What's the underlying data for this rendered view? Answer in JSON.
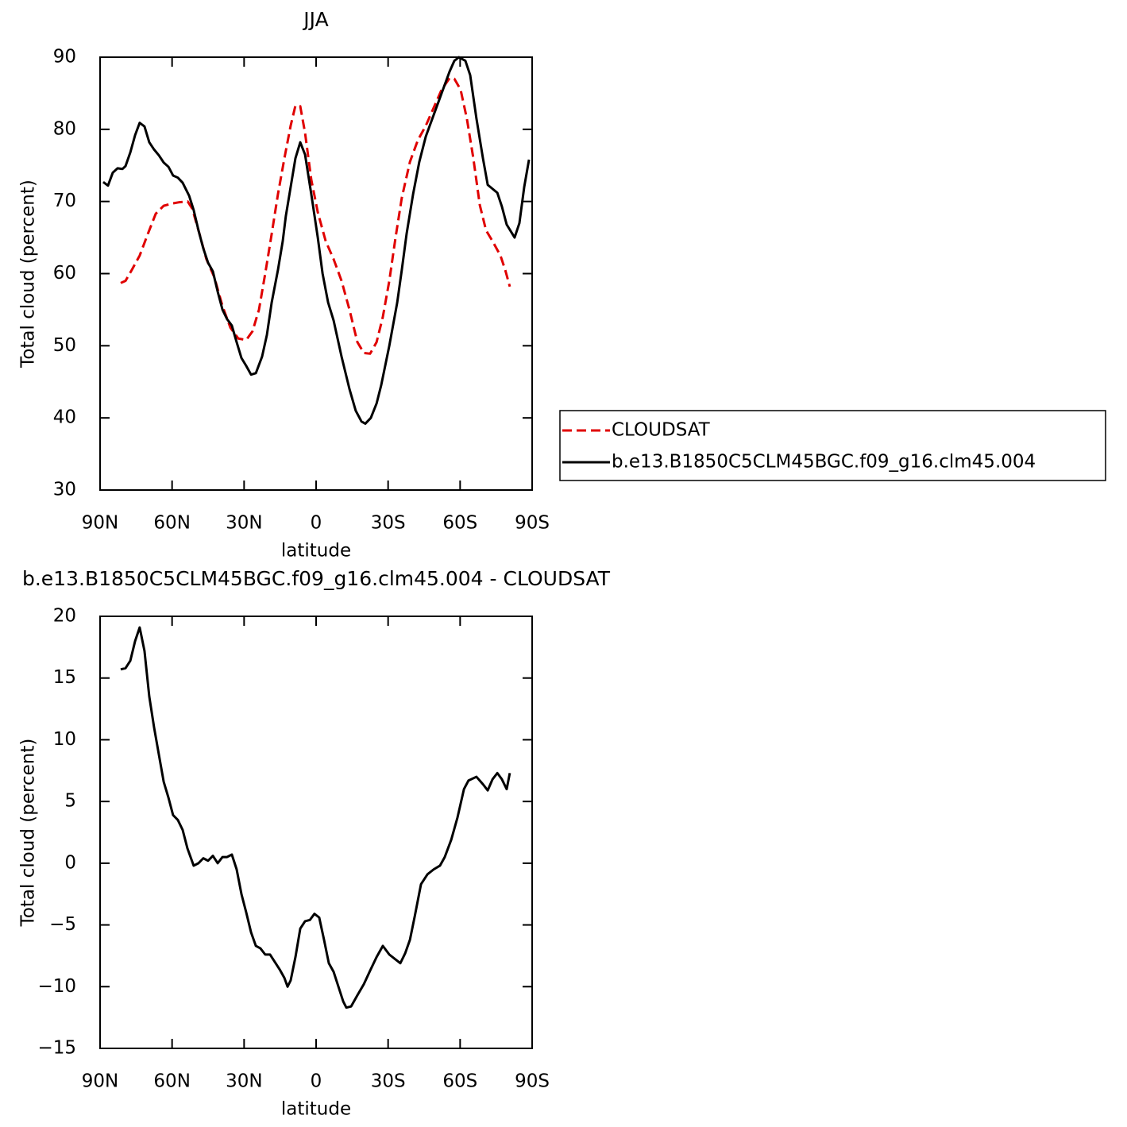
{
  "chart_data": [
    {
      "type": "line",
      "title": "JJA",
      "xlabel": "latitude",
      "ylabel": "Total cloud (percent)",
      "xlim": [
        90,
        -90
      ],
      "ylim": [
        30,
        90
      ],
      "xticks": [
        {
          "value": 90,
          "label": "90N"
        },
        {
          "value": 60,
          "label": "60N"
        },
        {
          "value": 30,
          "label": "30N"
        },
        0,
        {
          "value": -30,
          "label": "30S"
        },
        {
          "value": -60,
          "label": "60S"
        },
        {
          "value": -90,
          "label": "90S"
        }
      ],
      "yticks": [
        30,
        40,
        50,
        60,
        70,
        80,
        90
      ],
      "grid": false,
      "legend": "right",
      "series": [
        {
          "name": "CLOUDSAT",
          "color": "#e00000",
          "line_style": "dashed",
          "x": [
            81.4,
            79.4,
            76.8,
            73.5,
            70.1,
            66.8,
            63.5,
            60.2,
            56.9,
            53.5,
            51.6,
            49,
            45.7,
            42.4,
            39,
            35.7,
            32.4,
            29.1,
            26.5,
            23.8,
            21.2,
            18.5,
            15.9,
            13.2,
            10.6,
            8.6,
            6.6,
            4.6,
            2,
            -0.7,
            -4,
            -7.3,
            -10.6,
            -13.9,
            -17.2,
            -19.9,
            -22.5,
            -25.2,
            -27.8,
            -30.5,
            -33.1,
            -35.7,
            -39.1,
            -42.4,
            -45.7,
            -49,
            -52.3,
            -55.6,
            -57.6,
            -60.2,
            -62.8,
            -65.5,
            -68.2,
            -70.8,
            -73.5,
            -76.8,
            -78.8,
            -80.7
          ],
          "values": [
            58.7,
            59,
            60.5,
            62.5,
            65.5,
            68.3,
            69.4,
            69.7,
            69.9,
            70,
            69,
            66,
            62,
            59.5,
            55.5,
            52.5,
            51,
            50.8,
            52,
            55,
            60,
            65.5,
            71,
            76,
            80.5,
            83.3,
            83.2,
            79.5,
            73,
            68.5,
            64.5,
            62,
            59,
            55,
            50.5,
            49,
            48.9,
            50.5,
            54,
            59,
            65,
            70.5,
            75.5,
            78.5,
            80.5,
            83,
            85.5,
            87.1,
            87,
            85.5,
            81.5,
            76,
            69.5,
            66,
            64.5,
            62.5,
            60.5,
            58.2
          ]
        },
        {
          "name": "b.e13.B1850C5CLM45BGC.f09_g16.clm45.004",
          "color": "#000000",
          "line_style": "solid",
          "x": [
            88.7,
            86.7,
            84.7,
            82.7,
            80.7,
            79.4,
            77.4,
            75.4,
            73.5,
            71.5,
            69.5,
            67.5,
            65.5,
            63.5,
            61.5,
            59.6,
            57.6,
            55.6,
            52.9,
            51,
            49,
            47,
            45,
            43,
            41,
            39,
            37.1,
            35.1,
            33.1,
            31.1,
            29.1,
            27.1,
            25.1,
            22.5,
            20.5,
            18.5,
            15.9,
            13.9,
            12.6,
            8.6,
            6.6,
            4.6,
            2,
            -0.7,
            -2.7,
            -5,
            -7.3,
            -10.6,
            -13.9,
            -16.5,
            -18.9,
            -20.5,
            -22.8,
            -25.2,
            -27.1,
            -30.5,
            -33.8,
            -35.7,
            -37.7,
            -40.4,
            -43,
            -45.7,
            -49,
            -52.3,
            -55.6,
            -57.6,
            -59.5,
            -62.2,
            -64.2,
            -66.8,
            -69.5,
            -71.5,
            -75.5,
            -77.4,
            -79.4,
            -82.7,
            -84.7,
            -86.7,
            -88.7
          ],
          "values": [
            72.7,
            72.2,
            74,
            74.6,
            74.5,
            74.9,
            76.8,
            79.2,
            80.9,
            80.4,
            78.2,
            77.2,
            76.4,
            75.4,
            74.8,
            73.6,
            73.3,
            72.6,
            70.8,
            68.8,
            66,
            63.5,
            61.5,
            60.3,
            57.5,
            55,
            53.7,
            52.8,
            50.5,
            48.3,
            47.2,
            46,
            46.2,
            48.5,
            51.5,
            56,
            60.5,
            64.5,
            68,
            76,
            78.2,
            76.5,
            71,
            65,
            60,
            56,
            53.5,
            48.5,
            44,
            41,
            39.5,
            39.2,
            40,
            42,
            44.5,
            50,
            56,
            60.5,
            65.5,
            71,
            75.5,
            79,
            82,
            85,
            88,
            89.5,
            90,
            89.5,
            87.5,
            81.5,
            76,
            72.3,
            71.2,
            69.3,
            66.8,
            65,
            67,
            72,
            75.8
          ]
        }
      ]
    },
    {
      "type": "line",
      "title": "b.e13.B1850C5CLM45BGC.f09_g16.clm45.004 - CLOUDSAT",
      "xlabel": "latitude",
      "ylabel": "Total cloud (percent)",
      "xlim": [
        90,
        -90
      ],
      "ylim": [
        -15,
        20
      ],
      "xticks": [
        {
          "value": 90,
          "label": "90N"
        },
        {
          "value": 60,
          "label": "60N"
        },
        {
          "value": 30,
          "label": "30N"
        },
        0,
        {
          "value": -30,
          "label": "30S"
        },
        {
          "value": -60,
          "label": "60S"
        },
        {
          "value": -90,
          "label": "90S"
        }
      ],
      "yticks": [
        {
          "value": -15,
          "label": "−15"
        },
        {
          "value": -10,
          "label": "−10"
        },
        {
          "value": -5,
          "label": "−5"
        },
        0,
        5,
        10,
        15,
        20
      ],
      "grid": false,
      "series": [
        {
          "color": "#000000",
          "line_style": "solid",
          "x": [
            81.4,
            79.4,
            77.4,
            75.4,
            73.5,
            71.5,
            69.5,
            67.5,
            65.5,
            63.5,
            61.5,
            59.6,
            57.6,
            55.6,
            53.6,
            51,
            49,
            47,
            45,
            43,
            41,
            39,
            37.1,
            35.1,
            33.1,
            31.1,
            29.1,
            27.1,
            25.1,
            23.2,
            21.2,
            19.2,
            17.2,
            15.2,
            13.2,
            11.9,
            10.6,
            8.6,
            6.6,
            4.6,
            2.6,
            0.7,
            -1.3,
            -3.3,
            -5.3,
            -7.3,
            -9.3,
            -11.3,
            -12.6,
            -14.6,
            -17.2,
            -19.9,
            -22.5,
            -25.2,
            -27.8,
            -30.5,
            -33.1,
            -35.1,
            -37.1,
            -39.1,
            -41.1,
            -43.7,
            -46.4,
            -49,
            -51.6,
            -53.6,
            -56.3,
            -58.9,
            -61.6,
            -63.5,
            -66.8,
            -69.5,
            -71.5,
            -73.5,
            -75.5,
            -77.4,
            -79.4,
            -80.7
          ],
          "values": [
            15.7,
            15.8,
            16.4,
            18,
            19.1,
            17.2,
            13.5,
            11,
            8.8,
            6.6,
            5.3,
            3.9,
            3.5,
            2.7,
            1.2,
            -0.2,
            0,
            0.4,
            0.2,
            0.6,
            0,
            0.5,
            0.5,
            0.7,
            -0.5,
            -2.5,
            -4,
            -5.6,
            -6.7,
            -6.9,
            -7.4,
            -7.4,
            -8,
            -8.6,
            -9.3,
            -10,
            -9.5,
            -7.6,
            -5.3,
            -4.7,
            -4.6,
            -4.1,
            -4.4,
            -6.2,
            -8.1,
            -8.8,
            -10,
            -11.2,
            -11.7,
            -11.6,
            -10.7,
            -9.8,
            -8.7,
            -7.6,
            -6.7,
            -7.4,
            -7.8,
            -8.1,
            -7.3,
            -6.2,
            -4.3,
            -1.7,
            -0.9,
            -0.5,
            -0.2,
            0.5,
            1.9,
            3.7,
            6,
            6.7,
            7,
            6.4,
            5.9,
            6.8,
            7.3,
            6.8,
            6,
            7.3
          ]
        }
      ]
    }
  ]
}
